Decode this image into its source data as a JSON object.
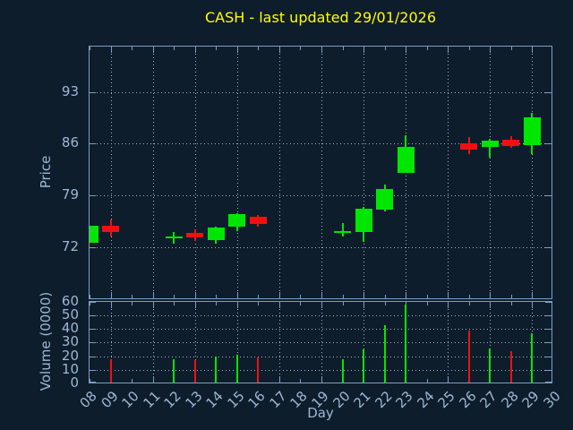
{
  "title": "CASH - last updated 29/01/2026",
  "colors": {
    "background": "#0e1d2c",
    "border": "#7d9ec2",
    "grid_dots": "#a8b4c2",
    "tick_text": "#9db7d5",
    "title_text": "#ffff00",
    "bullish": "#00e600",
    "bearish": "#f01010"
  },
  "price_axis": {
    "label": "Price",
    "ticks": [
      "72",
      "79",
      "86",
      "93"
    ]
  },
  "volume_axis": {
    "label": "Volume (0000)",
    "ticks": [
      "0",
      "10",
      "20",
      "30",
      "40",
      "50",
      "60"
    ]
  },
  "x_axis": {
    "label": "Day",
    "tick_labels": [
      "08",
      "09",
      "10",
      "11",
      "12",
      "13",
      "14",
      "15",
      "16",
      "17",
      "18",
      "19",
      "20",
      "21",
      "22",
      "23",
      "24",
      "25",
      "26",
      "27",
      "28",
      "29",
      "30"
    ],
    "gridline_days": [
      9,
      11,
      13,
      15,
      17,
      19,
      21,
      23,
      25,
      27,
      29
    ]
  },
  "chart_data": {
    "type": "candlestick",
    "title": "CASH - last updated 29/01/2026",
    "xlabel": "Day",
    "ylabel": "Price",
    "ylabel2": "Volume (0000)",
    "x_range": [
      8,
      30
    ],
    "price_axis_range": [
      65,
      99
    ],
    "price_tick_values": [
      72,
      79,
      86,
      93
    ],
    "volume_axis_range": [
      0,
      60
    ],
    "grid": "dotted, vertical lines at odd days, horizontal at price and volume ticks",
    "legend": "none",
    "series": [
      {
        "name": "price-candles",
        "type": "ohlc-candlestick",
        "points": [
          {
            "day": 8,
            "open": 72.6,
            "high": 74.9,
            "low": 72.6,
            "close": 74.9,
            "direction": "up"
          },
          {
            "day": 9,
            "open": 74.9,
            "high": 75.8,
            "low": 73.5,
            "close": 74.0,
            "direction": "down"
          },
          {
            "day": 12,
            "open": 73.3,
            "high": 74.0,
            "low": 72.5,
            "close": 73.5,
            "direction": "up"
          },
          {
            "day": 13,
            "open": 73.9,
            "high": 74.4,
            "low": 72.8,
            "close": 73.3,
            "direction": "down"
          },
          {
            "day": 14,
            "open": 73.0,
            "high": 74.8,
            "low": 72.5,
            "close": 74.7,
            "direction": "up"
          },
          {
            "day": 15,
            "open": 74.8,
            "high": 76.6,
            "low": 74.2,
            "close": 76.5,
            "direction": "up"
          },
          {
            "day": 16,
            "open": 76.1,
            "high": 76.4,
            "low": 74.8,
            "close": 75.2,
            "direction": "down"
          },
          {
            "day": 20,
            "open": 73.9,
            "high": 75.3,
            "low": 73.4,
            "close": 74.2,
            "direction": "up"
          },
          {
            "day": 21,
            "open": 74.0,
            "high": 77.4,
            "low": 72.7,
            "close": 77.2,
            "direction": "up"
          },
          {
            "day": 22,
            "open": 77.1,
            "high": 80.5,
            "low": 76.8,
            "close": 79.9,
            "direction": "up"
          },
          {
            "day": 23,
            "open": 82.0,
            "high": 87.2,
            "low": 82.0,
            "close": 85.6,
            "direction": "up"
          },
          {
            "day": 26,
            "open": 86.1,
            "high": 86.9,
            "low": 84.6,
            "close": 85.2,
            "direction": "down"
          },
          {
            "day": 27,
            "open": 85.6,
            "high": 86.7,
            "low": 84.1,
            "close": 86.4,
            "direction": "up"
          },
          {
            "day": 28,
            "open": 86.6,
            "high": 87.0,
            "low": 85.4,
            "close": 85.7,
            "direction": "down"
          },
          {
            "day": 29,
            "open": 85.8,
            "high": 90.2,
            "low": 84.6,
            "close": 89.6,
            "direction": "up"
          }
        ]
      },
      {
        "name": "volume-impulses",
        "type": "bar",
        "points": [
          {
            "day": 8,
            "value": null,
            "direction": "up"
          },
          {
            "day": 9,
            "value": 18,
            "direction": "down"
          },
          {
            "day": 12,
            "value": 18,
            "direction": "up"
          },
          {
            "day": 13,
            "value": 17,
            "direction": "down"
          },
          {
            "day": 14,
            "value": 20,
            "direction": "up"
          },
          {
            "day": 15,
            "value": 21,
            "direction": "up"
          },
          {
            "day": 16,
            "value": 19,
            "direction": "down"
          },
          {
            "day": 20,
            "value": 18,
            "direction": "up"
          },
          {
            "day": 21,
            "value": 25,
            "direction": "up"
          },
          {
            "day": 22,
            "value": 43,
            "direction": "up"
          },
          {
            "day": 23,
            "value": 58,
            "direction": "up"
          },
          {
            "day": 26,
            "value": 39,
            "direction": "down"
          },
          {
            "day": 27,
            "value": 26,
            "direction": "up"
          },
          {
            "day": 28,
            "value": 24,
            "direction": "down"
          },
          {
            "day": 29,
            "value": 37,
            "direction": "up"
          }
        ]
      }
    ]
  }
}
